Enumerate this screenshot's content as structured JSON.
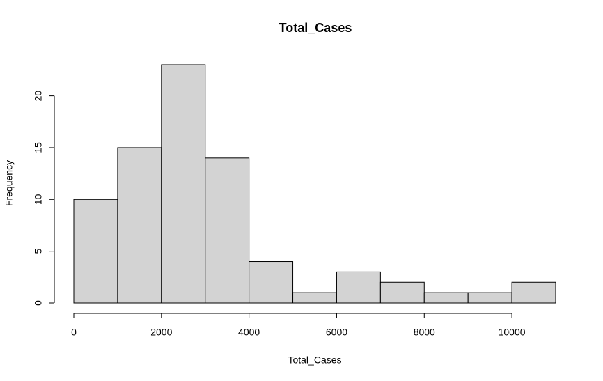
{
  "chart_data": {
    "type": "histogram",
    "title": "Total_Cases",
    "x_label": "Total_Cases",
    "y_label": "Frequency",
    "bins": [
      0,
      1000,
      2000,
      3000,
      4000,
      5000,
      6000,
      7000,
      8000,
      9000,
      10000,
      11000
    ],
    "values": [
      10,
      15,
      23,
      14,
      4,
      1,
      3,
      2,
      1,
      1,
      2
    ],
    "color": "#d3d3d3",
    "xlim": [
      0,
      11000
    ],
    "xticks": [
      0,
      2000,
      4000,
      6000,
      8000,
      10000
    ],
    "ylim": [
      0,
      23
    ],
    "yticks": [
      0,
      5,
      10,
      15,
      20
    ]
  }
}
